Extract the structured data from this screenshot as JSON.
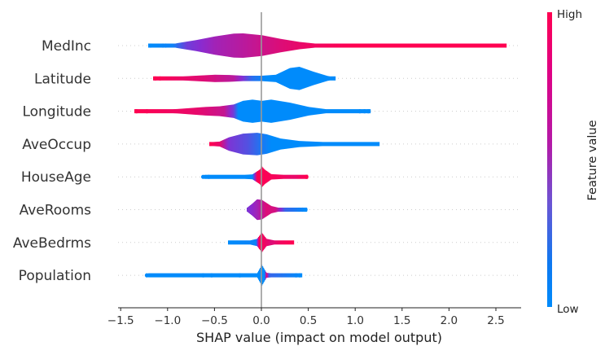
{
  "chart_data": {
    "type": "violin",
    "title": "",
    "xlabel": "SHAP value (impact on model output)",
    "ylabel": "",
    "xlim": [
      -1.55,
      2.8
    ],
    "xticks": [
      -1.5,
      -1.0,
      -0.5,
      0.0,
      0.5,
      1.0,
      1.5,
      2.0,
      2.5
    ],
    "xtick_labels": [
      "−1.5",
      "−1.0",
      "−0.5",
      "0.0",
      "0.5",
      "1.0",
      "1.5",
      "2.0",
      "2.5"
    ],
    "grid": false,
    "colorbar": {
      "title": "Feature value",
      "high_label": "High",
      "low_label": "Low",
      "low_color": "#008bfb",
      "mid_color": "#8a2bd0",
      "high_color": "#ff0051"
    },
    "features": [
      {
        "name": "MedInc",
        "min": -1.2,
        "max": 2.6,
        "density": [
          [
            -1.0,
            0.05
          ],
          [
            -0.9,
            0.2
          ],
          [
            -0.7,
            0.45
          ],
          [
            -0.5,
            0.75
          ],
          [
            -0.3,
            0.98
          ],
          [
            -0.2,
            1.0
          ],
          [
            0.0,
            0.85
          ],
          [
            0.2,
            0.55
          ],
          [
            0.4,
            0.3
          ],
          [
            0.6,
            0.14
          ],
          [
            0.85,
            0.1
          ],
          [
            0.86,
            0.06
          ],
          [
            2.6,
            0.06
          ]
        ],
        "color_stops": [
          [
            -1.2,
            0.0
          ],
          [
            -0.95,
            0.05
          ],
          [
            -0.8,
            0.4
          ],
          [
            -0.5,
            0.6
          ],
          [
            -0.2,
            0.7
          ],
          [
            0.2,
            0.85
          ],
          [
            0.6,
            0.95
          ],
          [
            1.0,
            1.0
          ],
          [
            2.6,
            1.0
          ]
        ],
        "outliers": [
          -1.18,
          -1.05,
          -1.02
        ]
      },
      {
        "name": "Latitude",
        "min": -1.15,
        "max": 0.78,
        "density": [
          [
            -1.05,
            0.1
          ],
          [
            -0.8,
            0.18
          ],
          [
            -0.5,
            0.3
          ],
          [
            -0.35,
            0.28
          ],
          [
            -0.2,
            0.22
          ],
          [
            0.0,
            0.22
          ],
          [
            0.15,
            0.3
          ],
          [
            0.3,
            0.85
          ],
          [
            0.4,
            0.95
          ],
          [
            0.55,
            0.55
          ],
          [
            0.7,
            0.2
          ],
          [
            0.78,
            0.1
          ]
        ],
        "color_stops": [
          [
            -1.15,
            1.0
          ],
          [
            -0.6,
            0.85
          ],
          [
            -0.3,
            0.7
          ],
          [
            -0.2,
            0.45
          ],
          [
            -0.1,
            0.15
          ],
          [
            0.05,
            0.0
          ],
          [
            0.78,
            0.0
          ]
        ],
        "outliers": [
          -1.13,
          -1.08
        ]
      },
      {
        "name": "Longitude",
        "min": -1.35,
        "max": 1.15,
        "density": [
          [
            -1.2,
            0.1
          ],
          [
            -0.9,
            0.18
          ],
          [
            -0.6,
            0.35
          ],
          [
            -0.45,
            0.4
          ],
          [
            -0.3,
            0.55
          ],
          [
            -0.2,
            0.85
          ],
          [
            -0.1,
            0.95
          ],
          [
            0.0,
            0.85
          ],
          [
            0.1,
            0.95
          ],
          [
            0.3,
            0.7
          ],
          [
            0.5,
            0.35
          ],
          [
            0.7,
            0.15
          ],
          [
            1.0,
            0.08
          ],
          [
            1.15,
            0.06
          ]
        ],
        "color_stops": [
          [
            -1.35,
            1.0
          ],
          [
            -0.7,
            0.9
          ],
          [
            -0.4,
            0.75
          ],
          [
            -0.3,
            0.4
          ],
          [
            -0.25,
            0.0
          ],
          [
            1.15,
            0.0
          ]
        ],
        "outliers": [
          -1.33,
          -1.22,
          1.05,
          1.1,
          1.14
        ]
      },
      {
        "name": "AveOccup",
        "min": -0.55,
        "max": 1.25,
        "density": [
          [
            -0.55,
            0.15
          ],
          [
            -0.45,
            0.2
          ],
          [
            -0.35,
            0.55
          ],
          [
            -0.2,
            0.85
          ],
          [
            -0.05,
            0.92
          ],
          [
            0.05,
            0.8
          ],
          [
            0.2,
            0.45
          ],
          [
            0.4,
            0.25
          ],
          [
            0.7,
            0.15
          ],
          [
            1.0,
            0.1
          ],
          [
            1.25,
            0.08
          ]
        ],
        "color_stops": [
          [
            -0.55,
            1.0
          ],
          [
            -0.45,
            0.9
          ],
          [
            -0.35,
            0.45
          ],
          [
            -0.15,
            0.3
          ],
          [
            0.0,
            0.1
          ],
          [
            0.1,
            0.0
          ],
          [
            1.25,
            0.0
          ]
        ],
        "outliers": []
      },
      {
        "name": "HouseAge",
        "min": -0.6,
        "max": 0.48,
        "density": [
          [
            -0.55,
            0.08
          ],
          [
            -0.3,
            0.12
          ],
          [
            -0.1,
            0.2
          ],
          [
            -0.02,
            0.6
          ],
          [
            0.0,
            0.85
          ],
          [
            0.03,
            0.6
          ],
          [
            0.1,
            0.22
          ],
          [
            0.3,
            0.14
          ],
          [
            0.4,
            0.1
          ]
        ],
        "color_stops": [
          [
            -0.6,
            0.0
          ],
          [
            -0.1,
            0.0
          ],
          [
            -0.05,
            1.0
          ],
          [
            0.2,
            0.95
          ],
          [
            0.35,
            0.9
          ],
          [
            0.48,
            1.0
          ]
        ],
        "outliers": [
          -0.62,
          -0.56,
          0.48
        ]
      },
      {
        "name": "AveRooms",
        "min": -0.15,
        "max": 0.47,
        "density": [
          [
            -0.15,
            0.2
          ],
          [
            -0.1,
            0.5
          ],
          [
            -0.05,
            0.85
          ],
          [
            0.0,
            0.8
          ],
          [
            0.05,
            0.55
          ],
          [
            0.1,
            0.3
          ],
          [
            0.2,
            0.12
          ],
          [
            0.35,
            0.08
          ],
          [
            0.47,
            0.06
          ]
        ],
        "color_stops": [
          [
            -0.15,
            0.45
          ],
          [
            -0.05,
            0.6
          ],
          [
            0.05,
            0.85
          ],
          [
            0.15,
            0.8
          ],
          [
            0.25,
            0.2
          ],
          [
            0.47,
            0.0
          ]
        ],
        "outliers": [
          0.4,
          0.44,
          0.47
        ]
      },
      {
        "name": "AveBedrms",
        "min": -0.35,
        "max": 0.33,
        "density": [
          [
            -0.35,
            0.08
          ],
          [
            -0.15,
            0.12
          ],
          [
            -0.05,
            0.3
          ],
          [
            0.0,
            0.8
          ],
          [
            0.05,
            0.3
          ],
          [
            0.15,
            0.14
          ],
          [
            0.3,
            0.1
          ]
        ],
        "color_stops": [
          [
            -0.35,
            0.0
          ],
          [
            -0.06,
            0.05
          ],
          [
            -0.03,
            1.0
          ],
          [
            0.1,
            0.85
          ],
          [
            0.2,
            0.95
          ],
          [
            0.33,
            1.0
          ]
        ],
        "outliers": []
      },
      {
        "name": "Population",
        "min": -1.2,
        "max": 0.42,
        "density": [
          [
            -0.25,
            0.06
          ],
          [
            -0.05,
            0.15
          ],
          [
            0.0,
            0.85
          ],
          [
            0.05,
            0.2
          ],
          [
            0.2,
            0.1
          ],
          [
            0.35,
            0.06
          ]
        ],
        "color_stops": [
          [
            -1.2,
            0.0
          ],
          [
            0.03,
            0.0
          ],
          [
            0.05,
            0.9
          ],
          [
            0.08,
            0.2
          ],
          [
            0.42,
            0.0
          ]
        ],
        "outliers": [
          -1.22,
          -0.62,
          -0.53,
          -0.23,
          0.37,
          0.41
        ]
      }
    ]
  }
}
